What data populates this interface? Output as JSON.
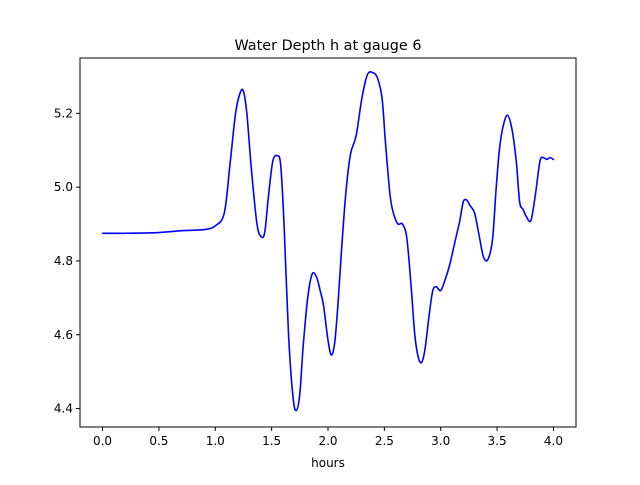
{
  "chart_data": {
    "type": "line",
    "title": "Water Depth h at gauge 6",
    "xlabel": "hours",
    "ylabel": "",
    "xlim": [
      -0.2,
      4.2
    ],
    "ylim": [
      4.35,
      5.35
    ],
    "xticks": [
      0.0,
      0.5,
      1.0,
      1.5,
      2.0,
      2.5,
      3.0,
      3.5,
      4.0
    ],
    "xtick_labels": [
      "0.0",
      "0.5",
      "1.0",
      "1.5",
      "2.0",
      "2.5",
      "3.0",
      "3.5",
      "4.0"
    ],
    "yticks": [
      4.4,
      4.6,
      4.8,
      5.0,
      5.2
    ],
    "ytick_labels": [
      "4.4",
      "4.6",
      "4.8",
      "5.0",
      "5.2"
    ],
    "grid": false,
    "legend": "none",
    "series": [
      {
        "color": "#0000ff",
        "x": [
          0.0,
          0.2,
          0.5,
          0.7,
          0.9,
          1.0,
          1.08,
          1.13,
          1.18,
          1.22,
          1.25,
          1.28,
          1.32,
          1.37,
          1.41,
          1.44,
          1.47,
          1.51,
          1.55,
          1.58,
          1.61,
          1.65,
          1.69,
          1.72,
          1.75,
          1.78,
          1.82,
          1.86,
          1.9,
          1.93,
          1.96,
          2.0,
          2.03,
          2.06,
          2.09,
          2.12,
          2.16,
          2.2,
          2.25,
          2.3,
          2.35,
          2.4,
          2.44,
          2.48,
          2.51,
          2.55,
          2.58,
          2.62,
          2.66,
          2.7,
          2.74,
          2.77,
          2.8,
          2.83,
          2.86,
          2.9,
          2.93,
          2.96,
          3.0,
          3.04,
          3.08,
          3.11,
          3.14,
          3.17,
          3.2,
          3.23,
          3.26,
          3.3,
          3.34,
          3.38,
          3.42,
          3.46,
          3.49,
          3.52,
          3.55,
          3.59,
          3.63,
          3.67,
          3.7,
          3.73,
          3.76,
          3.8,
          3.84,
          3.88,
          3.91,
          3.94,
          3.97,
          4.0
        ],
        "y": [
          4.875,
          4.875,
          4.877,
          4.882,
          4.885,
          4.895,
          4.93,
          5.06,
          5.2,
          5.255,
          5.26,
          5.2,
          5.05,
          4.9,
          4.865,
          4.88,
          4.97,
          5.07,
          5.085,
          5.06,
          4.9,
          4.6,
          4.43,
          4.395,
          4.44,
          4.57,
          4.7,
          4.765,
          4.755,
          4.72,
          4.68,
          4.585,
          4.545,
          4.58,
          4.69,
          4.83,
          4.99,
          5.09,
          5.14,
          5.24,
          5.305,
          5.31,
          5.295,
          5.24,
          5.12,
          4.98,
          4.93,
          4.9,
          4.9,
          4.86,
          4.72,
          4.6,
          4.54,
          4.525,
          4.56,
          4.66,
          4.72,
          4.73,
          4.72,
          4.75,
          4.79,
          4.83,
          4.87,
          4.91,
          4.96,
          4.965,
          4.95,
          4.93,
          4.87,
          4.81,
          4.805,
          4.86,
          4.99,
          5.1,
          5.16,
          5.195,
          5.16,
          5.07,
          4.96,
          4.94,
          4.92,
          4.91,
          4.98,
          5.07,
          5.08,
          5.075,
          5.08,
          5.075
        ]
      }
    ]
  }
}
